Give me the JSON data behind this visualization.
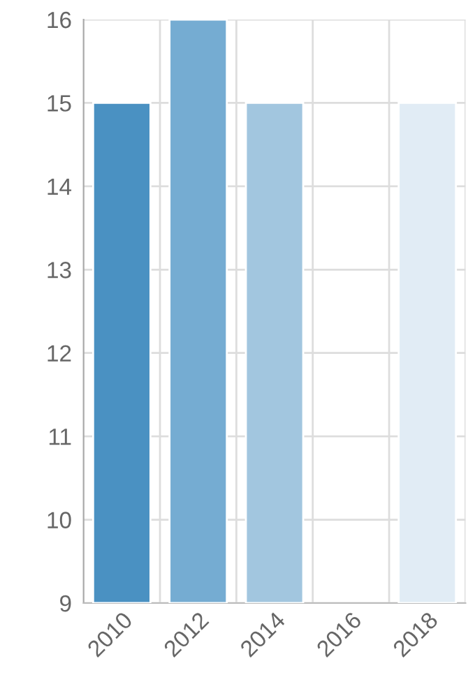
{
  "chart_data": {
    "type": "bar",
    "categories": [
      "2010",
      "2012",
      "2014",
      "2016",
      "2018"
    ],
    "values": [
      15,
      16,
      15,
      null,
      15
    ],
    "colors": [
      "#4a91c2",
      "#75acd2",
      "#a2c6df",
      "#ffffff",
      "#e1ecf5"
    ],
    "ylim": [
      9,
      16
    ],
    "yticks": [
      9,
      10,
      11,
      12,
      13,
      14,
      15,
      16
    ],
    "grid": true
  }
}
